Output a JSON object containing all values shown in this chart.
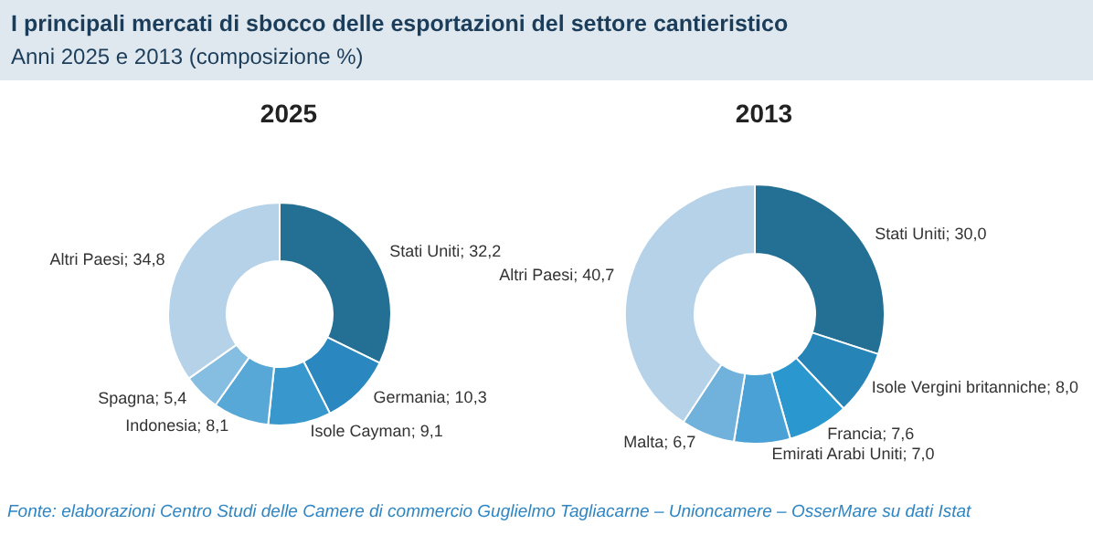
{
  "chart_data": [
    {
      "type": "donut",
      "title": "2025",
      "annotations": [
        "I principali mercati di sbocco delle esportazioni del settore cantieristico",
        "Anni 2025 e 2013 (composizione %)"
      ],
      "categories": [
        "Stati Uniti",
        "Germania",
        "Isole Cayman",
        "Indonesia",
        "Spagna",
        "Altri Paesi"
      ],
      "values": [
        32.2,
        10.3,
        9.1,
        8.1,
        5.4,
        34.8
      ],
      "value_labels": [
        "32,2",
        "10,3",
        "9,1",
        "8,1",
        "5,4",
        "34,8"
      ],
      "colors": [
        "#246f94",
        "#2a87bf",
        "#3898cd",
        "#58a8d7",
        "#86bee2",
        "#b6d2e8"
      ]
    },
    {
      "type": "donut",
      "title": "2013",
      "annotations": [
        "Fonte: elaborazioni Centro Studi delle Camere di commercio Guglielmo Tagliacarne – Unioncamere – OsserMare su dati Istat"
      ],
      "categories": [
        "Stati Uniti",
        "Isole Vergini britanniche",
        "Francia",
        "Emirati Arabi Uniti",
        "Malta",
        "Altri Paesi"
      ],
      "values": [
        30.0,
        8.0,
        7.6,
        7.0,
        6.7,
        40.7
      ],
      "value_labels": [
        "30,0",
        "8,0",
        "7,6",
        "7,0",
        "6,7",
        "40,7"
      ],
      "colors": [
        "#246f94",
        "#2684b7",
        "#2b97cf",
        "#4aa1d5",
        "#70b2dc",
        "#b6d2e8"
      ]
    }
  ]
}
